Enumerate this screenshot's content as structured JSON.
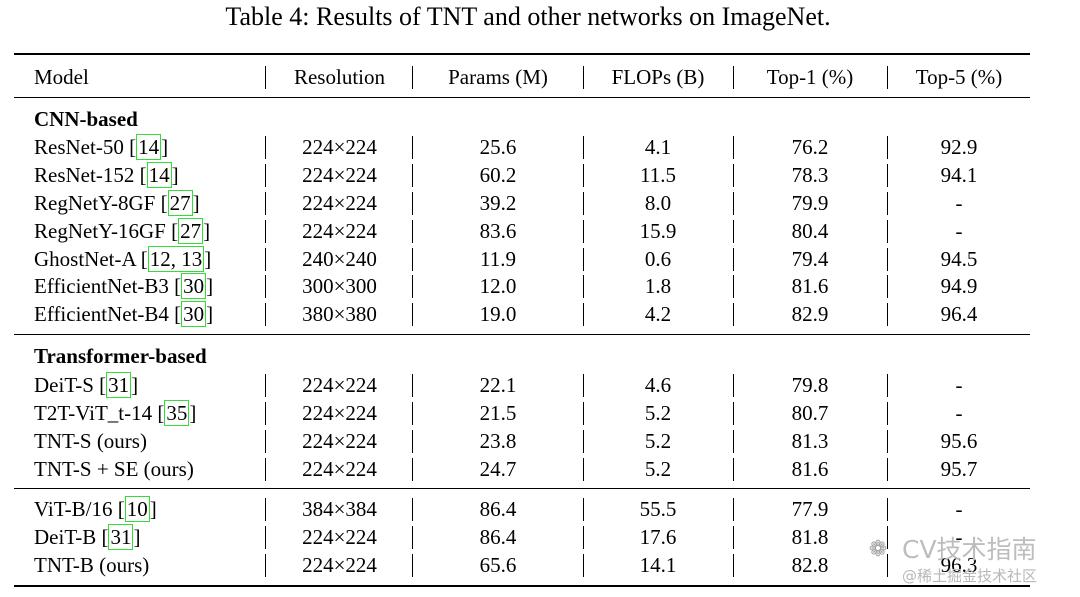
{
  "caption": "Table 4: Results of TNT and other networks on ImageNet.",
  "headers": [
    "Model",
    "Resolution",
    "Params (M)",
    "FLOPs (B)",
    "Top-1 (%)",
    "Top-5 (%)"
  ],
  "sections": [
    {
      "title": "CNN-based",
      "rows": [
        {
          "model": "ResNet-50 ",
          "refs": "14",
          "resolution": "224×224",
          "params": "25.6",
          "flops": "4.1",
          "top1": "76.2",
          "top5": "92.9"
        },
        {
          "model": "ResNet-152 ",
          "refs": "14",
          "resolution": "224×224",
          "params": "60.2",
          "flops": "11.5",
          "top1": "78.3",
          "top5": "94.1"
        },
        {
          "model": "RegNetY-8GF ",
          "refs": "27",
          "resolution": "224×224",
          "params": "39.2",
          "flops": "8.0",
          "top1": "79.9",
          "top5": "-"
        },
        {
          "model": "RegNetY-16GF ",
          "refs": "27",
          "resolution": "224×224",
          "params": "83.6",
          "flops": "15.9",
          "top1": "80.4",
          "top5": "-"
        },
        {
          "model": "GhostNet-A ",
          "refs": "12, 13",
          "resolution": "240×240",
          "params": "11.9",
          "flops": "0.6",
          "top1": "79.4",
          "top5": "94.5"
        },
        {
          "model": "EfficientNet-B3 ",
          "refs": "30",
          "resolution": "300×300",
          "params": "12.0",
          "flops": "1.8",
          "top1": "81.6",
          "top5": "94.9"
        },
        {
          "model": "EfficientNet-B4 ",
          "refs": "30",
          "resolution": "380×380",
          "params": "19.0",
          "flops": "4.2",
          "top1": "82.9",
          "top5": "96.4"
        }
      ]
    },
    {
      "title": "Transformer-based",
      "rows": [
        {
          "model": "DeiT-S ",
          "refs": "31",
          "resolution": "224×224",
          "params": "22.1",
          "flops": "4.6",
          "top1": "79.8",
          "top5": "-"
        },
        {
          "model": "T2T-ViT_t-14 ",
          "refs": "35",
          "resolution": "224×224",
          "params": "21.5",
          "flops": "5.2",
          "top1": "80.7",
          "top5": "-"
        },
        {
          "model": "TNT-S (ours)",
          "refs": "",
          "resolution": "224×224",
          "params": "23.8",
          "flops": "5.2",
          "top1": "81.3",
          "top5": "95.6"
        },
        {
          "model": "TNT-S + SE (ours)",
          "refs": "",
          "resolution": "224×224",
          "params": "24.7",
          "flops": "5.2",
          "top1": "81.6",
          "top5": "95.7"
        }
      ]
    },
    {
      "title": "",
      "rows": [
        {
          "model": "ViT-B/16 ",
          "refs": "10",
          "resolution": "384×384",
          "params": "86.4",
          "flops": "55.5",
          "top1": "77.9",
          "top5": "-"
        },
        {
          "model": "DeiT-B ",
          "refs": "31",
          "resolution": "224×224",
          "params": "86.4",
          "flops": "17.6",
          "top1": "81.8",
          "top5": "-"
        },
        {
          "model": "TNT-B (ours)",
          "refs": "",
          "resolution": "224×224",
          "params": "65.6",
          "flops": "14.1",
          "top1": "82.8",
          "top5": "96.3"
        }
      ]
    }
  ],
  "watermark": {
    "icon": "wechat-icon",
    "title": "CV技术指南",
    "subtitle": "@稀土掘金技术社区"
  }
}
